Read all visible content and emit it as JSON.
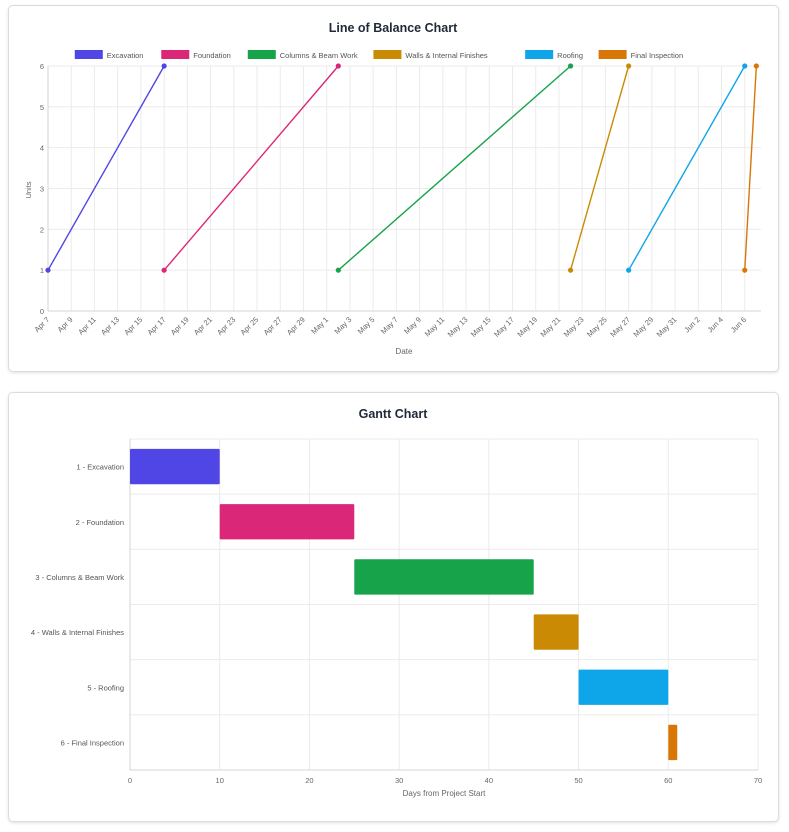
{
  "chart_data": [
    {
      "type": "line",
      "title": "Line of Balance Chart",
      "xlabel": "Date",
      "ylabel": "Units",
      "ylim": [
        0,
        6
      ],
      "yticks": [
        "0",
        "1",
        "2",
        "3",
        "4",
        "5",
        "6"
      ],
      "xticks": [
        "Apr 7",
        "Apr 9",
        "Apr 11",
        "Apr 13",
        "Apr 15",
        "Apr 17",
        "Apr 19",
        "Apr 21",
        "Apr 23",
        "Apr 25",
        "Apr 27",
        "Apr 29",
        "May 1",
        "May 3",
        "May 5",
        "May 7",
        "May 9",
        "May 11",
        "May 13",
        "May 15",
        "May 17",
        "May 19",
        "May 21",
        "May 23",
        "May 25",
        "May 27",
        "May 29",
        "May 31",
        "Jun 2",
        "Jun 4",
        "Jun 6"
      ],
      "grid": true,
      "legend_position": "top",
      "series": [
        {
          "name": "Excavation",
          "color": "#4f46e5",
          "points": [
            {
              "x": "2025-04-07",
              "y": 1
            },
            {
              "x": "2025-04-17",
              "y": 6
            }
          ]
        },
        {
          "name": "Foundation",
          "color": "#db2777",
          "points": [
            {
              "x": "2025-04-17",
              "y": 1
            },
            {
              "x": "2025-05-02",
              "y": 6
            }
          ]
        },
        {
          "name": "Columns & Beam Work",
          "color": "#16a34a",
          "points": [
            {
              "x": "2025-05-02",
              "y": 1
            },
            {
              "x": "2025-05-22",
              "y": 6
            }
          ]
        },
        {
          "name": "Walls & Internal Finishes",
          "color": "#ca8a04",
          "points": [
            {
              "x": "2025-05-22",
              "y": 1
            },
            {
              "x": "2025-05-27",
              "y": 6
            }
          ]
        },
        {
          "name": "Roofing",
          "color": "#0ea5e9",
          "points": [
            {
              "x": "2025-05-27",
              "y": 1
            },
            {
              "x": "2025-06-06",
              "y": 6
            }
          ]
        },
        {
          "name": "Final Inspection",
          "color": "#d97706",
          "points": [
            {
              "x": "2025-06-06",
              "y": 1
            },
            {
              "x": "2025-06-07",
              "y": 6
            }
          ]
        }
      ]
    },
    {
      "type": "bar",
      "orientation": "horizontal",
      "title": "Gantt Chart",
      "xlabel": "Days from Project Start",
      "ylabel": "",
      "xlim": [
        0,
        70
      ],
      "xticks": [
        "0",
        "10",
        "20",
        "30",
        "40",
        "50",
        "60",
        "70"
      ],
      "grid": true,
      "categories": [
        "1 - Excavation",
        "2 - Foundation",
        "3 - Columns & Beam Work",
        "4 - Walls & Internal Finishes",
        "5 - Roofing",
        "6 - Final Inspection"
      ],
      "bars": [
        {
          "start": 0,
          "end": 10,
          "color": "#4f46e5"
        },
        {
          "start": 10,
          "end": 25,
          "color": "#db2777"
        },
        {
          "start": 25,
          "end": 45,
          "color": "#16a34a"
        },
        {
          "start": 45,
          "end": 50,
          "color": "#ca8a04"
        },
        {
          "start": 50,
          "end": 60,
          "color": "#0ea5e9"
        },
        {
          "start": 60,
          "end": 61,
          "color": "#d97706"
        }
      ]
    }
  ]
}
